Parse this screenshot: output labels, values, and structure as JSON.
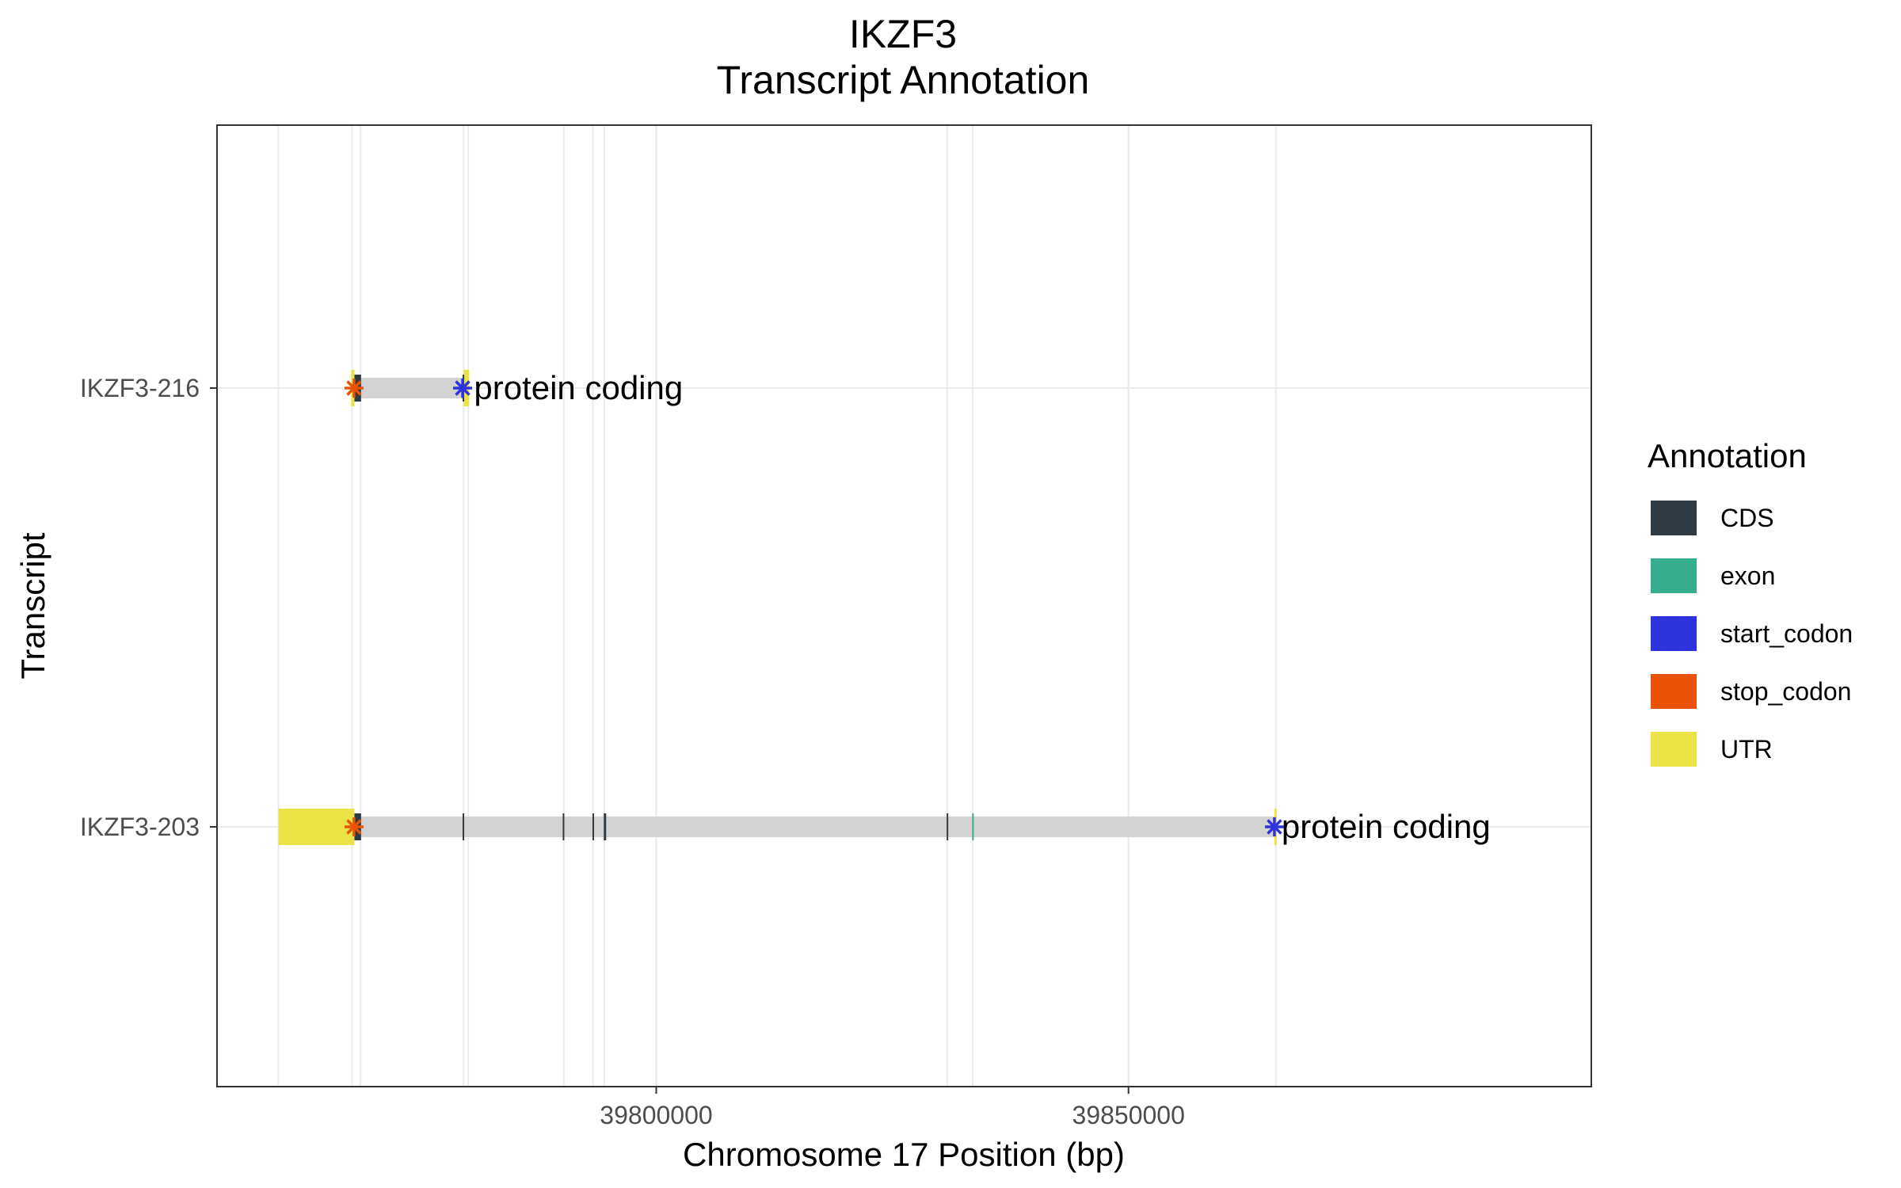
{
  "chart_data": {
    "type": "gene-track",
    "title": "IKZF3",
    "subtitle": "Transcript Annotation",
    "xlabel": "Chromosome 17 Position (bp)",
    "ylabel": "Transcript",
    "xlim": [
      39753500,
      39899000
    ],
    "x_ticks": [
      39800000,
      39850000
    ],
    "x_tick_labels": [
      "39800000",
      "39850000"
    ],
    "grid_x_positions": [
      39760000,
      39767800,
      39768700,
      39779600,
      39780100,
      39790200,
      39793300,
      39794500,
      39830800,
      39833500,
      39865600
    ],
    "colors": {
      "CDS": "#2e3a44",
      "exon": "#35ae8f",
      "start_codon": "#2d33dd",
      "stop_codon": "#ea5307",
      "UTR": "#ebe245",
      "intron": "#d3d3d3",
      "grid": "#ebebeb"
    },
    "legend": {
      "title": "Annotation",
      "position": "right",
      "items": [
        {
          "label": "CDS",
          "color_key": "CDS"
        },
        {
          "label": "exon",
          "color_key": "exon"
        },
        {
          "label": "start_codon",
          "color_key": "start_codon"
        },
        {
          "label": "stop_codon",
          "color_key": "stop_codon"
        },
        {
          "label": "UTR",
          "color_key": "UTR"
        }
      ]
    },
    "transcripts": [
      {
        "name": "IKZF3-216",
        "biotype_label": "protein coding",
        "span": [
          39767800,
          39780200
        ],
        "features": [
          {
            "type": "UTR",
            "start": 39767700,
            "end": 39768050
          },
          {
            "type": "CDS",
            "start": 39768050,
            "end": 39768750
          },
          {
            "type": "UTR",
            "start": 39779600,
            "end": 39780200
          },
          {
            "type": "CDS",
            "start": 39779500,
            "end": 39779650
          }
        ],
        "start_codon": 39779500,
        "stop_codon": 39768000
      },
      {
        "name": "IKZF3-203",
        "biotype_label": "protein coding",
        "span": [
          39760000,
          39865700
        ],
        "features": [
          {
            "type": "UTR",
            "start": 39760000,
            "end": 39768050
          },
          {
            "type": "CDS",
            "start": 39768050,
            "end": 39768750
          },
          {
            "type": "CDS",
            "start": 39779500,
            "end": 39779650
          },
          {
            "type": "CDS",
            "start": 39790100,
            "end": 39790250
          },
          {
            "type": "CDS",
            "start": 39793250,
            "end": 39793400
          },
          {
            "type": "CDS",
            "start": 39794450,
            "end": 39794700
          },
          {
            "type": "CDS",
            "start": 39830750,
            "end": 39830900
          },
          {
            "type": "exon",
            "start": 39833450,
            "end": 39833600
          },
          {
            "type": "UTR",
            "start": 39865450,
            "end": 39865700
          }
        ],
        "start_codon": 39865450,
        "stop_codon": 39768000
      }
    ]
  }
}
